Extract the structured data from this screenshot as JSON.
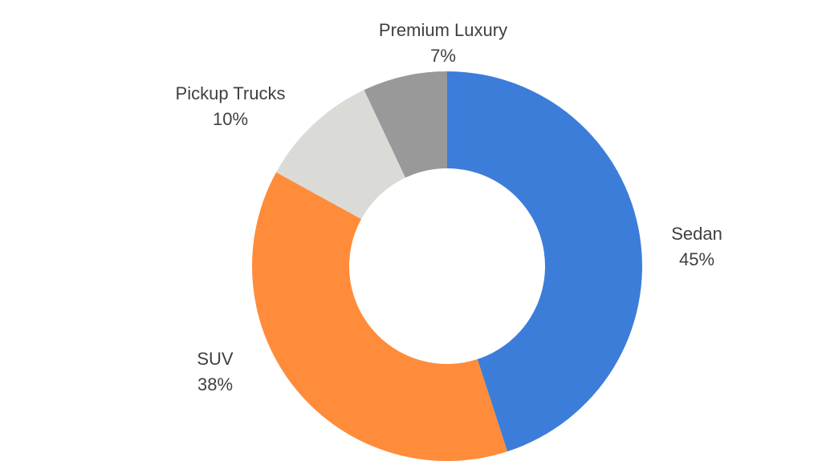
{
  "chart_data": {
    "type": "pie",
    "donut": true,
    "slices": [
      {
        "label": "Sedan",
        "value": 45,
        "pct_label": "45%",
        "color": "#3C7DDA"
      },
      {
        "label": "SUV",
        "value": 38,
        "pct_label": "38%",
        "color": "#FF8C3A"
      },
      {
        "label": "Pickup Trucks",
        "value": 10,
        "pct_label": "10%",
        "color": "#DADAD6"
      },
      {
        "label": "Premium Luxury",
        "value": 7,
        "pct_label": "7%",
        "color": "#999999"
      }
    ],
    "start_angle": "12 o'clock",
    "direction": "clockwise",
    "legend": "none",
    "data_labels": "outside, category name and percentage"
  }
}
